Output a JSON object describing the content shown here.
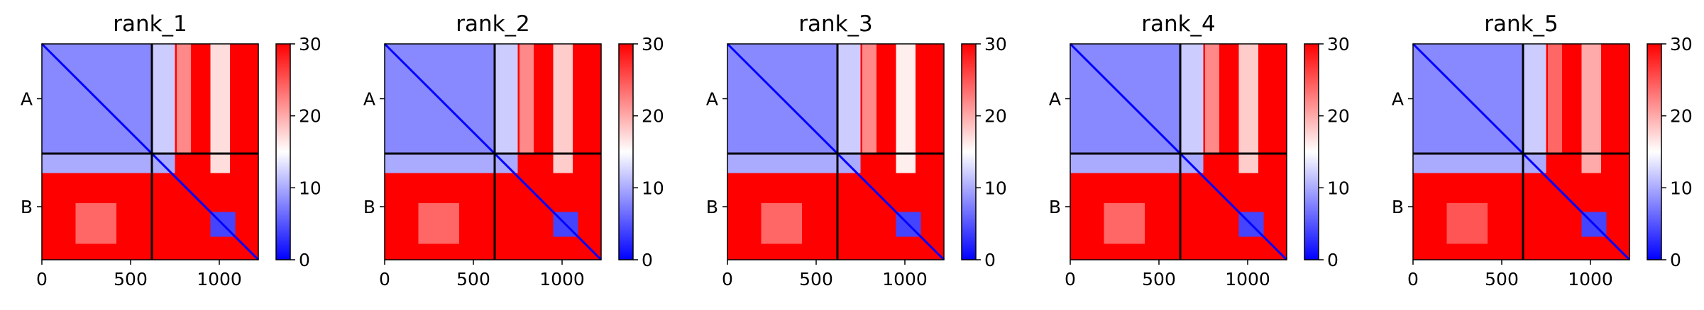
{
  "chart_data": [
    {
      "type": "heatmap",
      "title": "rank_1",
      "xticks": [
        0,
        500,
        1000
      ],
      "yticks": [
        "A",
        "B"
      ],
      "chain_boundary": 620,
      "length": 1220,
      "colorbar": {
        "min": 0,
        "max": 30,
        "ticks": [
          0,
          10,
          20,
          30
        ],
        "colors": [
          "#0000ff",
          "#ffffff",
          "#ff0000"
        ]
      },
      "blocks": [
        {
          "x": [
            0,
            620
          ],
          "y": [
            0,
            620
          ],
          "value": 8
        },
        {
          "x": [
            620,
            750
          ],
          "y": [
            0,
            620
          ],
          "value": 12
        },
        {
          "x": [
            0,
            750
          ],
          "y": [
            620,
            730
          ],
          "value": 10
        },
        {
          "x": [
            760,
            840
          ],
          "y": [
            0,
            620
          ],
          "value": 22
        },
        {
          "x": [
            950,
            1060
          ],
          "y": [
            0,
            730
          ],
          "value": 17
        },
        {
          "x": [
            190,
            420
          ],
          "y": [
            900,
            1130
          ],
          "value": 24
        },
        {
          "x": [
            950,
            1090
          ],
          "y": [
            950,
            1090
          ],
          "value": 4
        }
      ]
    },
    {
      "type": "heatmap",
      "title": "rank_2",
      "xticks": [
        0,
        500,
        1000
      ],
      "yticks": [
        "A",
        "B"
      ],
      "chain_boundary": 620,
      "length": 1220,
      "colorbar": {
        "min": 0,
        "max": 30,
        "ticks": [
          0,
          10,
          20,
          30
        ],
        "colors": [
          "#0000ff",
          "#ffffff",
          "#ff0000"
        ]
      },
      "blocks": [
        {
          "x": [
            0,
            620
          ],
          "y": [
            0,
            620
          ],
          "value": 8
        },
        {
          "x": [
            620,
            750
          ],
          "y": [
            0,
            620
          ],
          "value": 12
        },
        {
          "x": [
            0,
            750
          ],
          "y": [
            620,
            730
          ],
          "value": 10
        },
        {
          "x": [
            760,
            840
          ],
          "y": [
            0,
            620
          ],
          "value": 22
        },
        {
          "x": [
            950,
            1060
          ],
          "y": [
            0,
            730
          ],
          "value": 18
        },
        {
          "x": [
            190,
            420
          ],
          "y": [
            900,
            1130
          ],
          "value": 24
        },
        {
          "x": [
            950,
            1090
          ],
          "y": [
            950,
            1090
          ],
          "value": 4
        }
      ]
    },
    {
      "type": "heatmap",
      "title": "rank_3",
      "xticks": [
        0,
        500,
        1000
      ],
      "yticks": [
        "A",
        "B"
      ],
      "chain_boundary": 620,
      "length": 1220,
      "colorbar": {
        "min": 0,
        "max": 30,
        "ticks": [
          0,
          10,
          20,
          30
        ],
        "colors": [
          "#0000ff",
          "#ffffff",
          "#ff0000"
        ]
      },
      "blocks": [
        {
          "x": [
            0,
            620
          ],
          "y": [
            0,
            620
          ],
          "value": 8
        },
        {
          "x": [
            620,
            750
          ],
          "y": [
            0,
            620
          ],
          "value": 12
        },
        {
          "x": [
            0,
            750
          ],
          "y": [
            620,
            730
          ],
          "value": 10
        },
        {
          "x": [
            760,
            840
          ],
          "y": [
            0,
            620
          ],
          "value": 22
        },
        {
          "x": [
            950,
            1060
          ],
          "y": [
            0,
            730
          ],
          "value": 16
        },
        {
          "x": [
            190,
            420
          ],
          "y": [
            900,
            1130
          ],
          "value": 24
        },
        {
          "x": [
            950,
            1090
          ],
          "y": [
            950,
            1090
          ],
          "value": 4
        }
      ]
    },
    {
      "type": "heatmap",
      "title": "rank_4",
      "xticks": [
        0,
        500,
        1000
      ],
      "yticks": [
        "A",
        "B"
      ],
      "chain_boundary": 620,
      "length": 1220,
      "colorbar": {
        "min": 0,
        "max": 30,
        "ticks": [
          0,
          10,
          20,
          30
        ],
        "colors": [
          "#0000ff",
          "#ffffff",
          "#ff0000"
        ]
      },
      "blocks": [
        {
          "x": [
            0,
            620
          ],
          "y": [
            0,
            620
          ],
          "value": 8
        },
        {
          "x": [
            620,
            750
          ],
          "y": [
            0,
            620
          ],
          "value": 12
        },
        {
          "x": [
            0,
            750
          ],
          "y": [
            620,
            730
          ],
          "value": 10
        },
        {
          "x": [
            760,
            840
          ],
          "y": [
            0,
            620
          ],
          "value": 22
        },
        {
          "x": [
            950,
            1060
          ],
          "y": [
            0,
            730
          ],
          "value": 18
        },
        {
          "x": [
            190,
            420
          ],
          "y": [
            900,
            1130
          ],
          "value": 24
        },
        {
          "x": [
            950,
            1090
          ],
          "y": [
            950,
            1090
          ],
          "value": 4
        }
      ]
    },
    {
      "type": "heatmap",
      "title": "rank_5",
      "xticks": [
        0,
        500,
        1000
      ],
      "yticks": [
        "A",
        "B"
      ],
      "chain_boundary": 620,
      "length": 1220,
      "colorbar": {
        "min": 0,
        "max": 30,
        "ticks": [
          0,
          10,
          20,
          30
        ],
        "colors": [
          "#0000ff",
          "#ffffff",
          "#ff0000"
        ]
      },
      "blocks": [
        {
          "x": [
            0,
            620
          ],
          "y": [
            0,
            620
          ],
          "value": 8
        },
        {
          "x": [
            620,
            750
          ],
          "y": [
            0,
            620
          ],
          "value": 12
        },
        {
          "x": [
            0,
            750
          ],
          "y": [
            620,
            730
          ],
          "value": 10
        },
        {
          "x": [
            760,
            840
          ],
          "y": [
            0,
            620
          ],
          "value": 24
        },
        {
          "x": [
            950,
            1060
          ],
          "y": [
            0,
            730
          ],
          "value": 20
        },
        {
          "x": [
            190,
            420
          ],
          "y": [
            900,
            1130
          ],
          "value": 25
        },
        {
          "x": [
            950,
            1090
          ],
          "y": [
            950,
            1090
          ],
          "value": 4
        }
      ]
    }
  ]
}
